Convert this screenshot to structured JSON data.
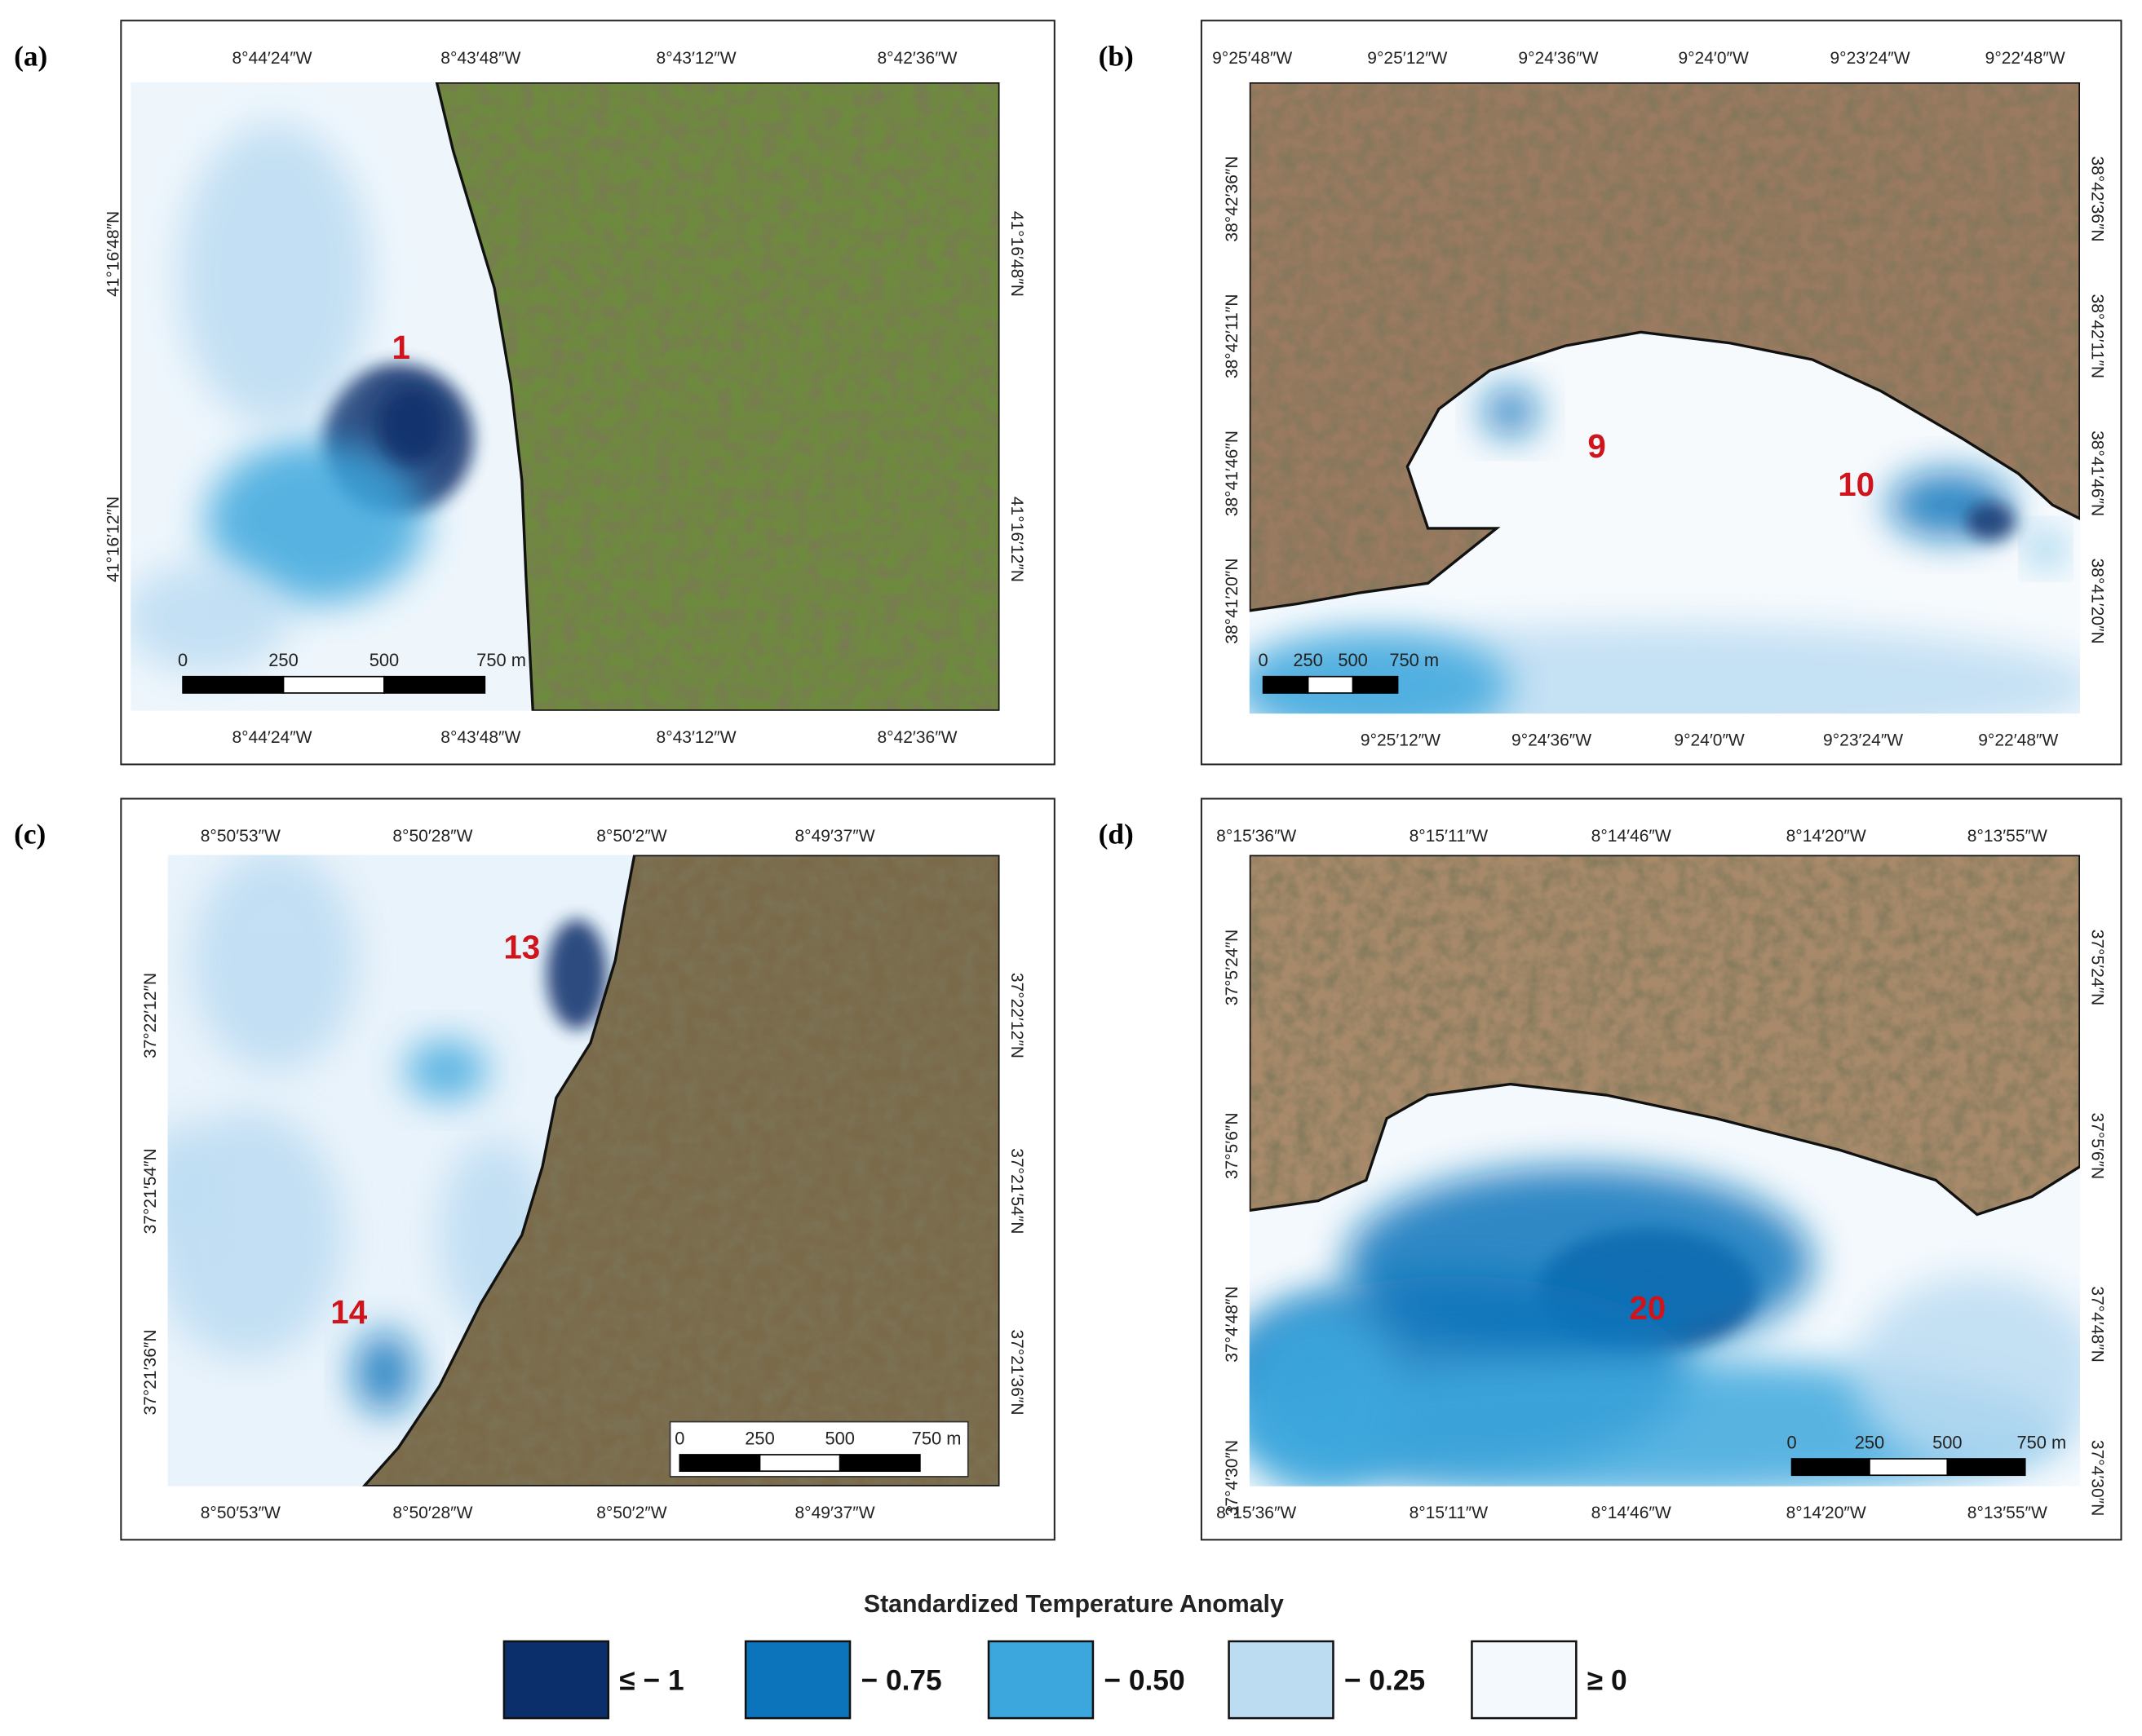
{
  "panels": [
    {
      "label": "(a)",
      "top_ticks": [
        "8°44′24″W",
        "8°43′48″W",
        "8°43′12″W",
        "8°42′36″W"
      ],
      "bottom_ticks": [
        "8°44′24″W",
        "8°43′48″W",
        "8°43′12″W",
        "8°42′36″W"
      ],
      "left_ticks": [
        "41°16′48″N",
        "41°16′12″N"
      ],
      "right_ticks": [
        "41°16′48″N",
        "41°16′12″N"
      ],
      "scale": [
        "0",
        "250",
        "500",
        "750 m"
      ],
      "hotspots": [
        "1"
      ]
    },
    {
      "label": "(b)",
      "top_ticks": [
        "9°25′48″W",
        "9°25′12″W",
        "9°24′36″W",
        "9°24′0″W",
        "9°23′24″W",
        "9°22′48″W"
      ],
      "bottom_ticks": [
        "9°25′12″W",
        "9°24′36″W",
        "9°24′0″W",
        "9°23′24″W",
        "9°22′48″W"
      ],
      "left_ticks": [
        "38°42′36″N",
        "38°42′11″N",
        "38°41′46″N",
        "38°41′20″N"
      ],
      "right_ticks": [
        "38°42′36″N",
        "38°42′11″N",
        "38°41′46″N",
        "38°41′20″N"
      ],
      "scale": [
        "0",
        "250",
        "500",
        "750 m"
      ],
      "hotspots": [
        "9",
        "10"
      ]
    },
    {
      "label": "(c)",
      "top_ticks": [
        "8°50′53″W",
        "8°50′28″W",
        "8°50′2″W",
        "8°49′37″W"
      ],
      "bottom_ticks": [
        "8°50′53″W",
        "8°50′28″W",
        "8°50′2″W",
        "8°49′37″W"
      ],
      "left_ticks": [
        "37°22′12″N",
        "37°21′54″N",
        "37°21′36″N"
      ],
      "right_ticks": [
        "37°22′12″N",
        "37°21′54″N",
        "37°21′36″N"
      ],
      "scale": [
        "0",
        "250",
        "500",
        "750 m"
      ],
      "hotspots": [
        "13",
        "14"
      ]
    },
    {
      "label": "(d)",
      "top_ticks": [
        "8°15′36″W",
        "8°15′11″W",
        "8°14′46″W",
        "8°14′20″W",
        "8°13′55″W"
      ],
      "bottom_ticks": [
        "8°15′36″W",
        "8°15′11″W",
        "8°14′46″W",
        "8°14′20″W",
        "8°13′55″W"
      ],
      "left_ticks": [
        "37°5′24″N",
        "37°5′6″N",
        "37°4′48″N",
        "37°4′30″N"
      ],
      "right_ticks": [
        "37°5′24″N",
        "37°5′6″N",
        "37°4′48″N",
        "37°4′30″N"
      ],
      "scale": [
        "0",
        "250",
        "500",
        "750 m"
      ],
      "hotspots": [
        "20"
      ]
    }
  ],
  "legend": {
    "title": "Standardized Temperature Anomaly",
    "items": [
      {
        "label": "≤ − 1",
        "color": "#0b2f6b"
      },
      {
        "label": "− 0.75",
        "color": "#0b74bb"
      },
      {
        "label": "− 0.50",
        "color": "#3ca7dd"
      },
      {
        "label": "− 0.25",
        "color": "#bcdcf2"
      },
      {
        "label": "≥ 0",
        "color": "#f4f9fd"
      }
    ]
  }
}
